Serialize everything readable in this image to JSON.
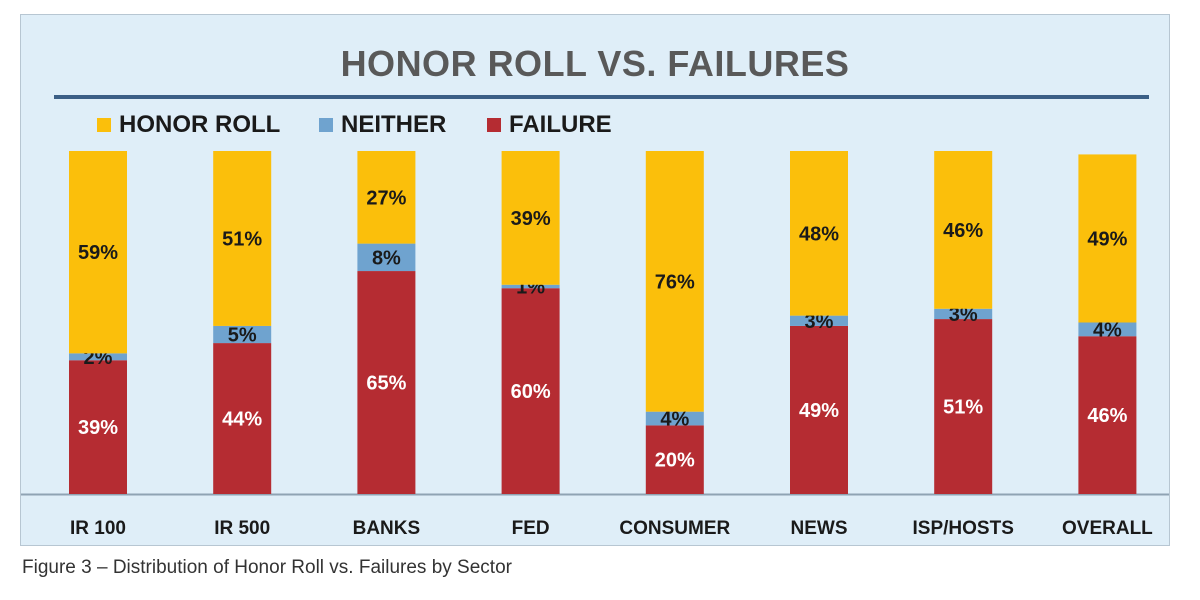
{
  "chart_data": {
    "type": "bar",
    "stacked": true,
    "title": "HONOR ROLL VS. FAILURES",
    "categories": [
      "IR 100",
      "IR 500",
      "BANKS",
      "FED",
      "CONSUMER",
      "NEWS",
      "ISP/HOSTS",
      "OVERALL"
    ],
    "series": [
      {
        "name": "FAILURE",
        "color": "#b52c32",
        "label_color": "#ffffff",
        "values": [
          39,
          44,
          65,
          60,
          20,
          49,
          51,
          46
        ],
        "labels": [
          "39%",
          "44%",
          "65%",
          "60%",
          "20%",
          "49%",
          "51%",
          "46%"
        ]
      },
      {
        "name": "NEITHER",
        "color": "#6fa3cf",
        "label_color": "#1a1a1a",
        "values": [
          2,
          5,
          8,
          1,
          4,
          3,
          3,
          4
        ],
        "labels": [
          "2%",
          "5%",
          "8%",
          "1%",
          "4%",
          "3%",
          "3%",
          "4%"
        ]
      },
      {
        "name": "HONOR ROLL",
        "color": "#fbbf0b",
        "label_color": "#1a1a1a",
        "values": [
          59,
          51,
          27,
          39,
          76,
          48,
          46,
          49
        ],
        "labels": [
          "59%",
          "51%",
          "27%",
          "39%",
          "76%",
          "48%",
          "46%",
          "49%"
        ]
      }
    ],
    "legend_order": [
      "HONOR ROLL",
      "NEITHER",
      "FAILURE"
    ],
    "legend_position": "top-left",
    "ylim": [
      0,
      100
    ],
    "grid": false
  },
  "caption": "Figure 3 – Distribution of Honor Roll vs. Failures by Sector",
  "colors": {
    "panel_background": "#dfeef8",
    "title_rule": "#3b5f86",
    "title_text": "#595959"
  }
}
